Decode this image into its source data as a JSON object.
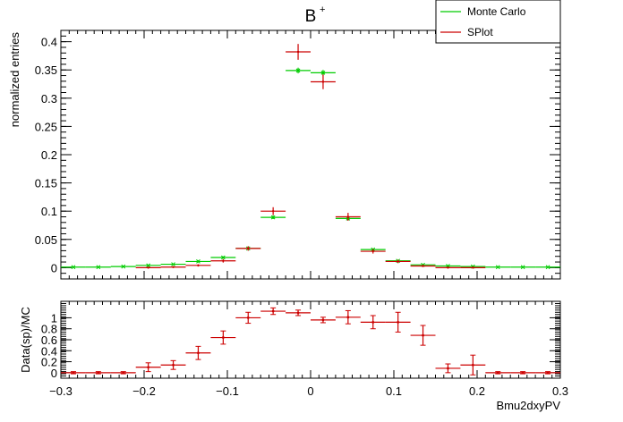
{
  "chart_data": [
    {
      "type": "scatter",
      "title": "B",
      "title_superscript": "+",
      "xlabel": "",
      "ylabel": "normalized entries",
      "xlim": [
        -0.3,
        0.3
      ],
      "ylim": [
        -0.02,
        0.42
      ],
      "bin_width": 0.03,
      "y_ticks": [
        0,
        0.05,
        0.1,
        0.15,
        0.2,
        0.25,
        0.3,
        0.35,
        0.4
      ],
      "y_tick_labels": [
        "0",
        "0.05",
        "0.1",
        "0.15",
        "0.2",
        "0.25",
        "0.3",
        "0.35",
        "0.4"
      ],
      "legend_position": "top-right",
      "series": [
        {
          "name": "Monte Carlo",
          "color": "#00cc00",
          "x": [
            -0.285,
            -0.255,
            -0.225,
            -0.195,
            -0.165,
            -0.135,
            -0.105,
            -0.075,
            -0.045,
            -0.015,
            0.015,
            0.045,
            0.075,
            0.105,
            0.135,
            0.165,
            0.195,
            0.225,
            0.255,
            0.285
          ],
          "y": [
            0.001,
            0.001,
            0.002,
            0.004,
            0.006,
            0.011,
            0.018,
            0.034,
            0.089,
            0.349,
            0.345,
            0.087,
            0.032,
            0.012,
            0.005,
            0.003,
            0.002,
            0.001,
            0.001,
            0.001
          ],
          "yerr": [
            0.001,
            0.001,
            0.001,
            0.001,
            0.001,
            0.002,
            0.002,
            0.002,
            0.003,
            0.005,
            0.005,
            0.003,
            0.002,
            0.001,
            0.001,
            0.001,
            0.001,
            0.001,
            0.001,
            0.001
          ]
        },
        {
          "name": "SPlot",
          "color": "#cc0000",
          "x": [
            -0.195,
            -0.165,
            -0.135,
            -0.105,
            -0.075,
            -0.045,
            -0.015,
            0.015,
            0.045,
            0.075,
            0.105,
            0.135,
            0.165,
            0.195
          ],
          "y": [
            0.0,
            0.001,
            0.004,
            0.012,
            0.034,
            0.1,
            0.382,
            0.329,
            0.09,
            0.029,
            0.011,
            0.003,
            0.0,
            0.0
          ],
          "yerr": [
            0.001,
            0.001,
            0.002,
            0.003,
            0.004,
            0.007,
            0.014,
            0.013,
            0.007,
            0.004,
            0.003,
            0.002,
            0.001,
            0.001
          ]
        }
      ]
    },
    {
      "type": "scatter",
      "title": "",
      "xlabel": "Bmu2dxyPV",
      "ylabel": "Data(sp)/MC",
      "xlim": [
        -0.3,
        0.3
      ],
      "ylim": [
        -0.1,
        1.3
      ],
      "bin_width": 0.03,
      "x_ticks": [
        -0.3,
        -0.2,
        -0.1,
        0,
        0.1,
        0.2,
        0.3
      ],
      "x_tick_labels": [
        "−0.3",
        "−0.2",
        "−0.1",
        "0",
        "0.1",
        "0.2",
        "0.3"
      ],
      "y_ticks": [
        0,
        0.2,
        0.4,
        0.6,
        0.8,
        1
      ],
      "y_tick_labels": [
        "0",
        "0.2",
        "0.4",
        "0.6",
        "0.8",
        "1"
      ],
      "series": [
        {
          "name": "",
          "color": "#cc0000",
          "x": [
            -0.285,
            -0.255,
            -0.225,
            -0.195,
            -0.165,
            -0.135,
            -0.105,
            -0.075,
            -0.045,
            -0.015,
            0.015,
            0.045,
            0.075,
            0.105,
            0.135,
            0.165,
            0.195,
            0.225,
            0.255,
            0.285
          ],
          "y": [
            0.0,
            0.0,
            0.0,
            0.1,
            0.14,
            0.36,
            0.64,
            1.0,
            1.12,
            1.09,
            0.96,
            1.01,
            0.92,
            0.92,
            0.68,
            0.08,
            0.14,
            0.0,
            0.0,
            0.0
          ],
          "yerr": [
            0.02,
            0.02,
            0.02,
            0.08,
            0.08,
            0.12,
            0.12,
            0.1,
            0.06,
            0.05,
            0.05,
            0.12,
            0.12,
            0.18,
            0.18,
            0.08,
            0.18,
            0.02,
            0.02,
            0.02
          ]
        }
      ]
    }
  ]
}
